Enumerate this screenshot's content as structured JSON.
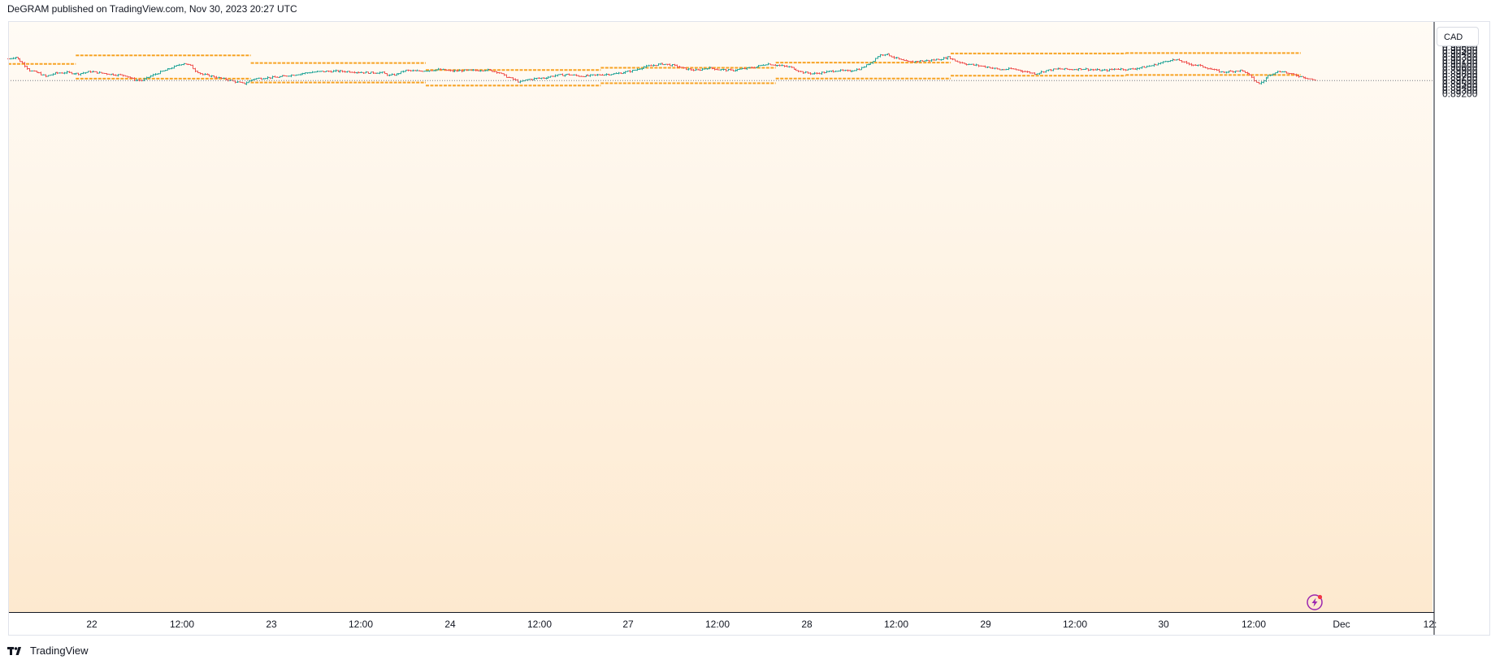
{
  "header": {
    "text": "DeGRAM published on TradingView.com, Nov 30, 2023 20:27 UTC"
  },
  "footer": {
    "brand": "TradingView"
  },
  "price_axis": {
    "currency": "CAD"
  },
  "colors": {
    "up": "#26a69a",
    "down": "#ef5350",
    "level": "#f7a324",
    "background_top": "#fffbf5",
    "background_bottom": "#fde9cf"
  },
  "icons": {
    "flash": "lightning-icon",
    "logo": "tradingview-logo-icon"
  },
  "chart_data": {
    "type": "line",
    "title": "",
    "xlabel": "",
    "ylabel": "",
    "x_ticks": [
      "22",
      "12:00",
      "23",
      "12:00",
      "24",
      "12:00",
      "27",
      "12:00",
      "28",
      "12:00",
      "29",
      "12:00",
      "30",
      "12:00",
      "Dec",
      "12:"
    ],
    "y_ticks": [
      "0.90600",
      "0.90500",
      "0.90400",
      "0.90300",
      "0.90200",
      "0.90100",
      "0.90000",
      "0.89900",
      "0.89800",
      "0.89700",
      "0.89600",
      "0.89500",
      "0.89400",
      "0.89300",
      "0.89200"
    ],
    "ylim": [
      0.8918,
      0.9069
    ],
    "last_price": 0.896,
    "price_path": [
      [
        0,
        0.9025
      ],
      [
        0.3,
        0.903
      ],
      [
        0.6,
        0.9012
      ],
      [
        0.9,
        0.899
      ],
      [
        1.3,
        0.8982
      ],
      [
        1.6,
        0.8972
      ],
      [
        2.0,
        0.8982
      ],
      [
        2.5,
        0.8984
      ],
      [
        3.0,
        0.898
      ],
      [
        3.5,
        0.8987
      ],
      [
        4.0,
        0.8982
      ],
      [
        4.5,
        0.8978
      ],
      [
        5.0,
        0.8975
      ],
      [
        5.4,
        0.8962
      ],
      [
        5.7,
        0.896
      ],
      [
        6.0,
        0.897
      ],
      [
        6.5,
        0.8985
      ],
      [
        7.0,
        0.8998
      ],
      [
        7.5,
        0.9012
      ],
      [
        7.8,
        0.9005
      ],
      [
        8.0,
        0.899
      ],
      [
        8.3,
        0.8978
      ],
      [
        8.6,
        0.8975
      ],
      [
        9.0,
        0.8968
      ],
      [
        9.4,
        0.8962
      ],
      [
        9.8,
        0.8955
      ],
      [
        10.1,
        0.895
      ],
      [
        10.5,
        0.8965
      ],
      [
        11.0,
        0.8968
      ],
      [
        11.5,
        0.897
      ],
      [
        12.0,
        0.8975
      ],
      [
        12.5,
        0.898
      ],
      [
        13.0,
        0.8985
      ],
      [
        13.5,
        0.8987
      ],
      [
        14.0,
        0.8988
      ],
      [
        14.5,
        0.8987
      ],
      [
        15.0,
        0.8985
      ],
      [
        15.5,
        0.8983
      ],
      [
        16.0,
        0.8984
      ],
      [
        16.3,
        0.8975
      ],
      [
        16.6,
        0.8978
      ],
      [
        17.0,
        0.899
      ],
      [
        17.5,
        0.8988
      ],
      [
        18.0,
        0.899
      ],
      [
        18.5,
        0.8993
      ],
      [
        19.0,
        0.8988
      ],
      [
        19.5,
        0.899
      ],
      [
        20.0,
        0.899
      ],
      [
        20.5,
        0.8992
      ],
      [
        21.0,
        0.8985
      ],
      [
        21.3,
        0.8972
      ],
      [
        21.6,
        0.8965
      ],
      [
        21.9,
        0.8955
      ],
      [
        22.2,
        0.8962
      ],
      [
        22.6,
        0.8966
      ],
      [
        23.0,
        0.8968
      ],
      [
        23.4,
        0.8975
      ],
      [
        24.0,
        0.8978
      ],
      [
        24.5,
        0.8973
      ],
      [
        25.0,
        0.8975
      ],
      [
        25.5,
        0.8978
      ],
      [
        26.0,
        0.898
      ],
      [
        26.4,
        0.8985
      ],
      [
        26.8,
        0.899
      ],
      [
        27.2,
        0.9
      ],
      [
        27.6,
        0.9005
      ],
      [
        28.0,
        0.901
      ],
      [
        28.5,
        0.9005
      ],
      [
        29.0,
        0.8995
      ],
      [
        29.5,
        0.899
      ],
      [
        30.0,
        0.8998
      ],
      [
        30.4,
        0.8993
      ],
      [
        31.0,
        0.899
      ],
      [
        31.5,
        0.8995
      ],
      [
        32.0,
        0.9
      ],
      [
        32.5,
        0.901
      ],
      [
        33.0,
        0.9005
      ],
      [
        33.5,
        0.9
      ],
      [
        34.0,
        0.8985
      ],
      [
        34.5,
        0.898
      ],
      [
        35.0,
        0.8985
      ],
      [
        35.5,
        0.899
      ],
      [
        36.0,
        0.8988
      ],
      [
        36.5,
        0.8995
      ],
      [
        37.0,
        0.9015
      ],
      [
        37.3,
        0.9035
      ],
      [
        37.6,
        0.904
      ],
      [
        38.0,
        0.9028
      ],
      [
        38.3,
        0.902
      ],
      [
        38.6,
        0.9015
      ],
      [
        39.0,
        0.9018
      ],
      [
        39.5,
        0.902
      ],
      [
        40.0,
        0.9025
      ],
      [
        40.3,
        0.903
      ],
      [
        40.6,
        0.9018
      ],
      [
        41.0,
        0.901
      ],
      [
        41.5,
        0.9005
      ],
      [
        42.0,
        0.9
      ],
      [
        42.5,
        0.8992
      ],
      [
        43.0,
        0.8995
      ],
      [
        43.5,
        0.8988
      ],
      [
        44.0,
        0.898
      ],
      [
        44.5,
        0.899
      ],
      [
        45.0,
        0.8995
      ],
      [
        45.5,
        0.8993
      ],
      [
        46.0,
        0.8995
      ],
      [
        46.5,
        0.8992
      ],
      [
        47.0,
        0.899
      ],
      [
        47.5,
        0.8995
      ],
      [
        48.0,
        0.8993
      ],
      [
        48.5,
        0.8998
      ],
      [
        49.0,
        0.9005
      ],
      [
        49.5,
        0.9015
      ],
      [
        49.8,
        0.9022
      ],
      [
        50.2,
        0.902
      ],
      [
        50.5,
        0.901
      ],
      [
        51.0,
        0.9005
      ],
      [
        51.5,
        0.8995
      ],
      [
        52.0,
        0.8985
      ],
      [
        52.5,
        0.8988
      ],
      [
        52.8,
        0.899
      ],
      [
        53.0,
        0.8985
      ],
      [
        53.2,
        0.8975
      ],
      [
        53.4,
        0.896
      ],
      [
        53.6,
        0.895
      ],
      [
        53.8,
        0.896
      ],
      [
        54.0,
        0.8975
      ],
      [
        54.3,
        0.8985
      ],
      [
        54.6,
        0.8988
      ],
      [
        54.9,
        0.898
      ],
      [
        55.2,
        0.8975
      ],
      [
        55.5,
        0.897
      ],
      [
        55.8,
        0.8965
      ],
      [
        56.0,
        0.896
      ]
    ],
    "support_resistance_levels": [
      {
        "from": 0,
        "to": 2.9,
        "price": 0.90095
      },
      {
        "from": 2.9,
        "to": 10.4,
        "price": 0.9035
      },
      {
        "from": 2.9,
        "to": 10.4,
        "price": 0.89655
      },
      {
        "from": 10.4,
        "to": 17.9,
        "price": 0.90125
      },
      {
        "from": 10.4,
        "to": 17.9,
        "price": 0.8954
      },
      {
        "from": 17.9,
        "to": 25.4,
        "price": 0.89915
      },
      {
        "from": 17.9,
        "to": 25.4,
        "price": 0.8945
      },
      {
        "from": 25.4,
        "to": 32.9,
        "price": 0.8998
      },
      {
        "from": 25.4,
        "to": 32.9,
        "price": 0.8952
      },
      {
        "from": 32.9,
        "to": 40.4,
        "price": 0.90135
      },
      {
        "from": 32.9,
        "to": 40.4,
        "price": 0.8966
      },
      {
        "from": 40.4,
        "to": 47.9,
        "price": 0.9041
      },
      {
        "from": 40.4,
        "to": 47.9,
        "price": 0.89745
      },
      {
        "from": 47.9,
        "to": 55.4,
        "price": 0.9042
      },
      {
        "from": 47.9,
        "to": 55.4,
        "price": 0.89765
      }
    ]
  }
}
